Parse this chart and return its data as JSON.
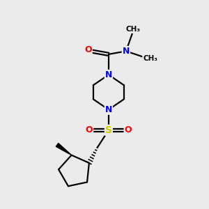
{
  "background_color": "#ebebeb",
  "atom_colors": {
    "C": "#000000",
    "N": "#0000ee",
    "O": "#ff0000",
    "S": "#cccc00"
  },
  "bond_color": "#000000",
  "bond_width": 1.6,
  "figsize": [
    3.0,
    3.0
  ],
  "dpi": 100,
  "xlim": [
    0,
    10
  ],
  "ylim": [
    0,
    10
  ]
}
